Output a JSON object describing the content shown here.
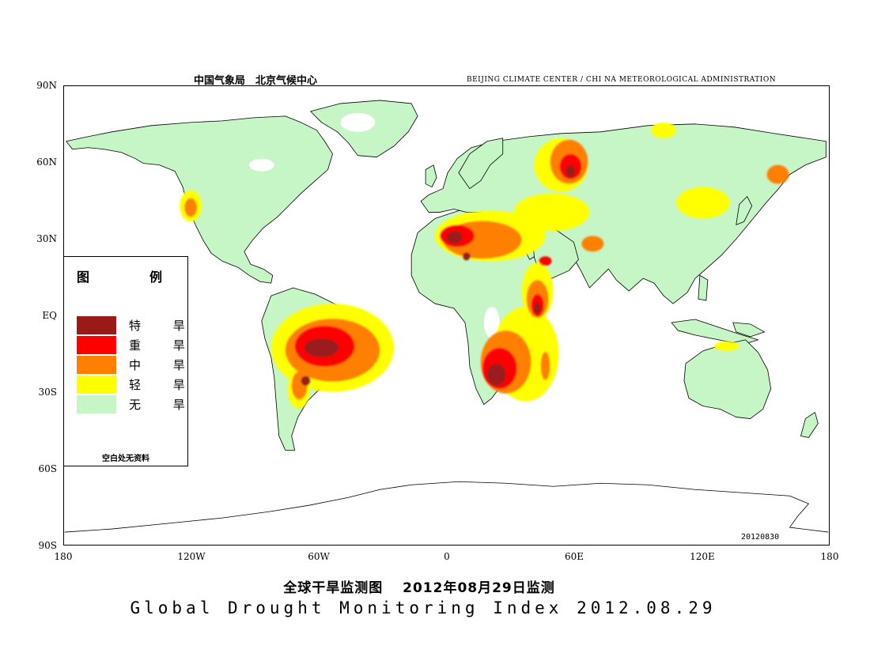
{
  "header": {
    "agency_cn": "中国气象局　北京气候中心",
    "agency_en": "BEIJING CLIMATE CENTER / CHI NA METEOROLOGICAL ADMINISTRATION"
  },
  "axes": {
    "lat_labels": [
      "90N",
      "60N",
      "30N",
      "EQ",
      "30S",
      "60S",
      "90S"
    ],
    "lon_labels": [
      "180",
      "120W",
      "60W",
      "0",
      "60E",
      "120E",
      "180"
    ]
  },
  "legend": {
    "title": "图　例",
    "items": [
      {
        "label": "特 旱",
        "color": "#9a1a1a"
      },
      {
        "label": "重 旱",
        "color": "#ff0000"
      },
      {
        "label": "中 旱",
        "color": "#ff8000"
      },
      {
        "label": "轻 旱",
        "color": "#ffff00"
      },
      {
        "label": "无 旱",
        "color": "#c6f5c6"
      }
    ],
    "note": "空白处无资料"
  },
  "date_stamp": "20120830",
  "title_cn": "全球干旱监测图　 2012年08月29日监测",
  "title_en": "Global Drought Monitoring Index  2012.08.29"
}
